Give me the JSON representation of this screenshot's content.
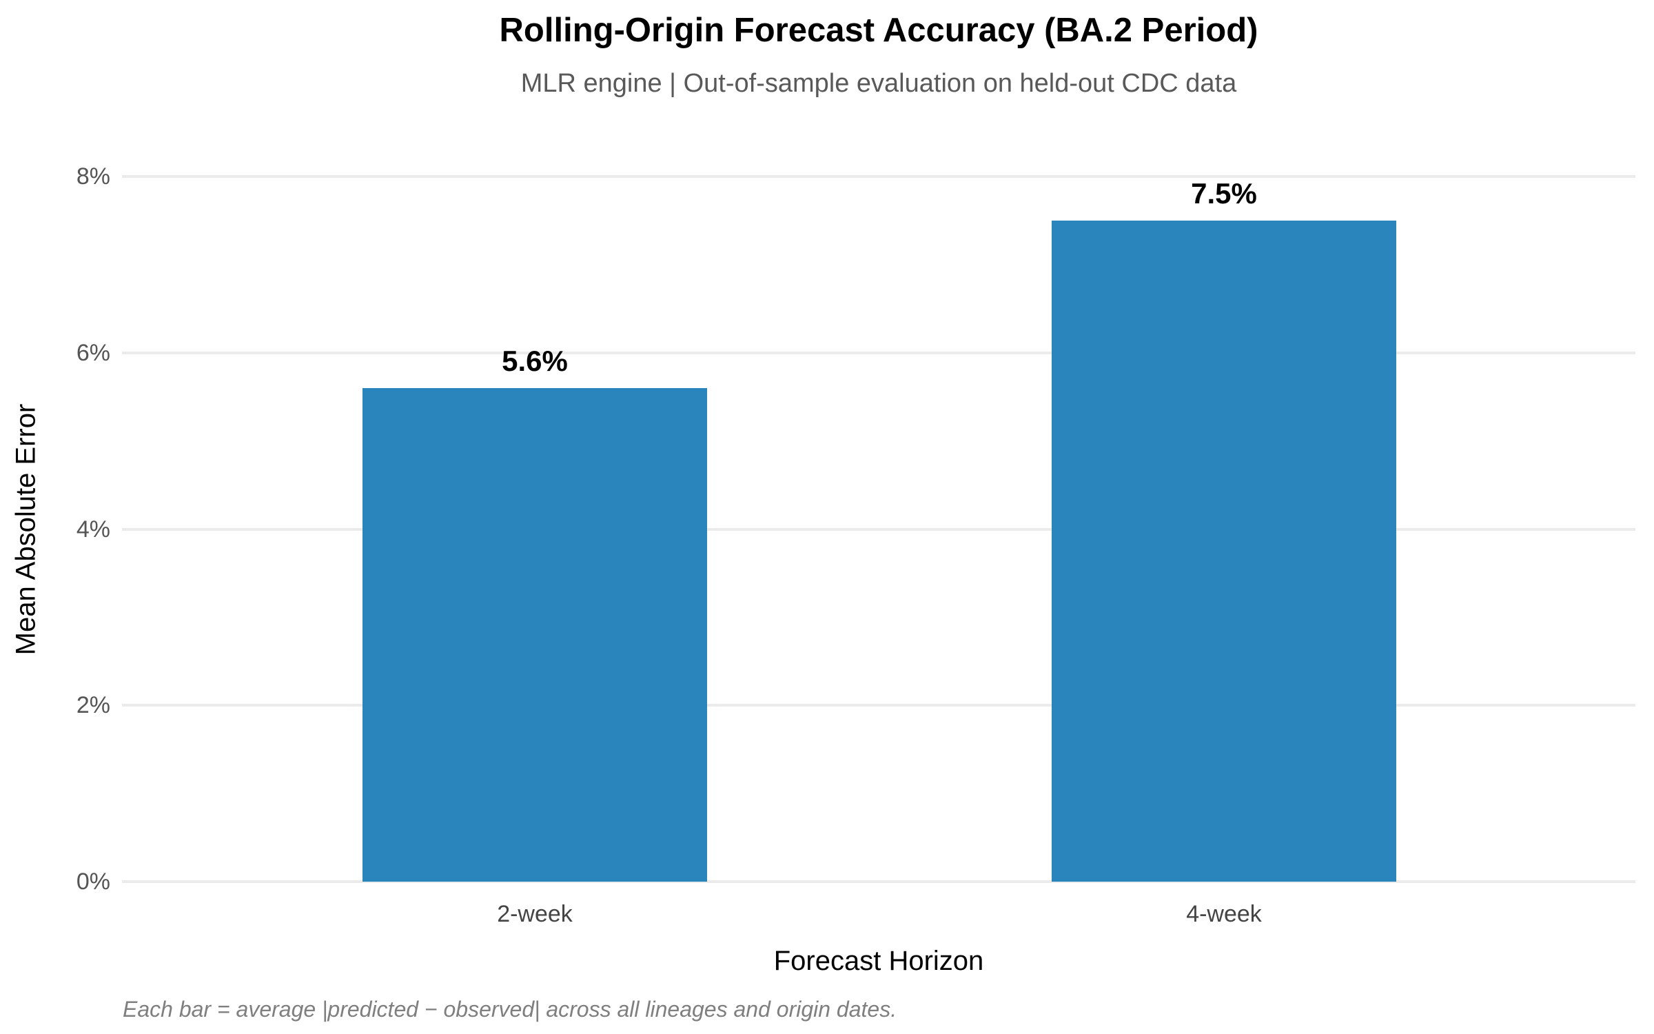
{
  "chart_data": {
    "type": "bar",
    "title": "Rolling-Origin Forecast Accuracy (BA.2 Period)",
    "subtitle": "MLR engine | Out-of-sample evaluation on held-out CDC data",
    "xlabel": "Forecast Horizon",
    "ylabel": "Mean Absolute Error",
    "categories": [
      "2-week",
      "4-week"
    ],
    "values": [
      5.6,
      7.5
    ],
    "value_labels": [
      "5.6%",
      "7.5%"
    ],
    "ylim": [
      0,
      8
    ],
    "yticks": [
      0,
      2,
      4,
      6,
      8
    ],
    "ytick_labels": [
      "0%",
      "2%",
      "4%",
      "6%",
      "8%"
    ],
    "grid": "horizontal-only, light gray, no axis spines",
    "legend": "none",
    "bar_color": "#2a85bd",
    "annotation": "Each bar = average |predicted − observed| across all lineages and origin dates."
  }
}
